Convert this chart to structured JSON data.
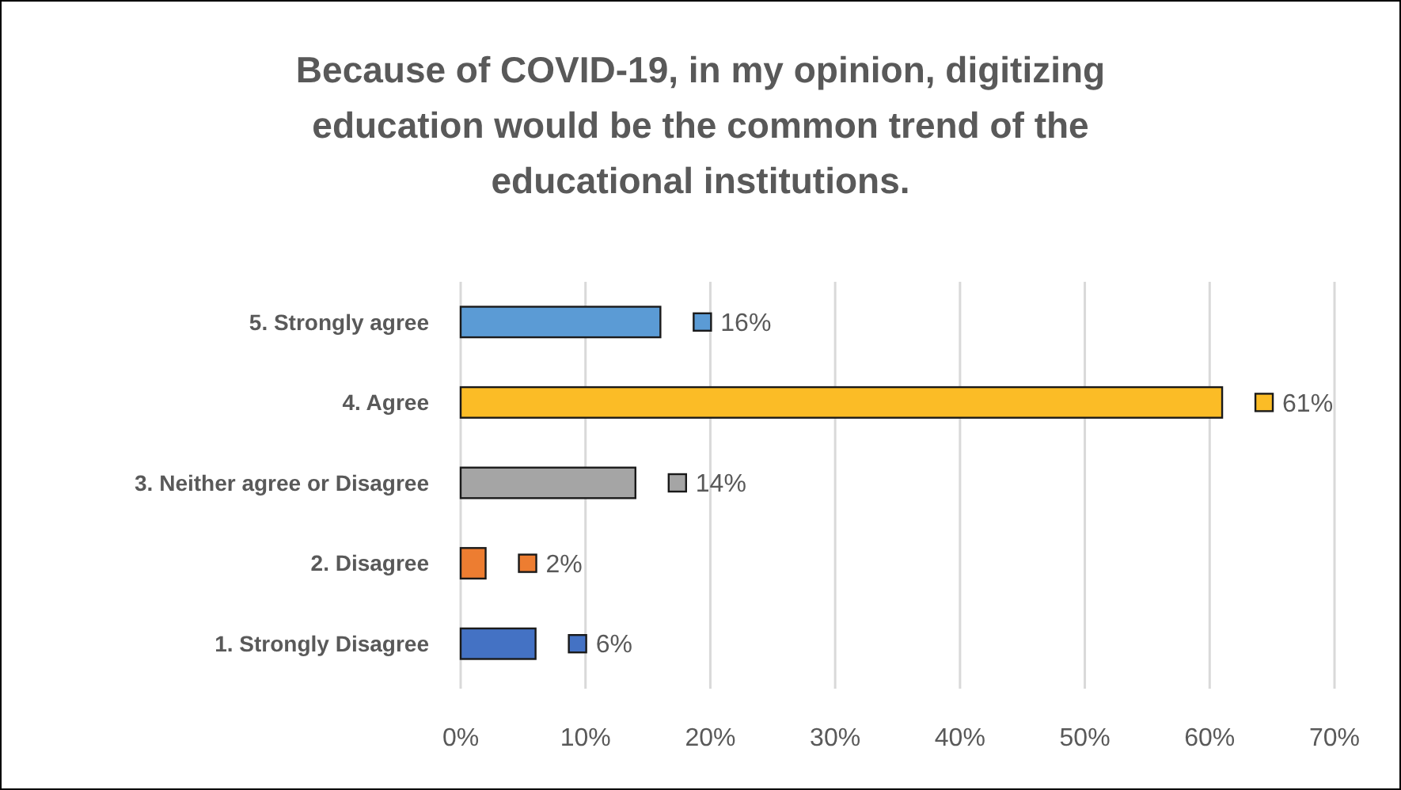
{
  "chart_data": {
    "type": "bar",
    "orientation": "horizontal",
    "title": "Because of COVID-19, in my opinion, digitizing education would be the common trend of the educational institutions.",
    "categories": [
      "5. Strongly agree",
      "4. Agree",
      "3. Neither agree or Disagree",
      "2. Disagree",
      "1. Strongly Disagree"
    ],
    "values": [
      16,
      61,
      14,
      2,
      6
    ],
    "colors": [
      "#5b9bd5",
      "#fbbc26",
      "#a5a5a5",
      "#ed7d31",
      "#4472c4"
    ],
    "value_labels": [
      "16%",
      "61%",
      "14%",
      "2%",
      "6%"
    ],
    "xlim": [
      0,
      70
    ],
    "xticks": [
      {
        "value": 0,
        "label": "0%"
      },
      {
        "value": 10,
        "label": "10%"
      },
      {
        "value": 20,
        "label": "20%"
      },
      {
        "value": 30,
        "label": "30%"
      },
      {
        "value": 40,
        "label": "40%"
      },
      {
        "value": 50,
        "label": "50%"
      },
      {
        "value": 60,
        "label": "60%"
      },
      {
        "value": 70,
        "label": "70%"
      }
    ],
    "grid": "x"
  }
}
